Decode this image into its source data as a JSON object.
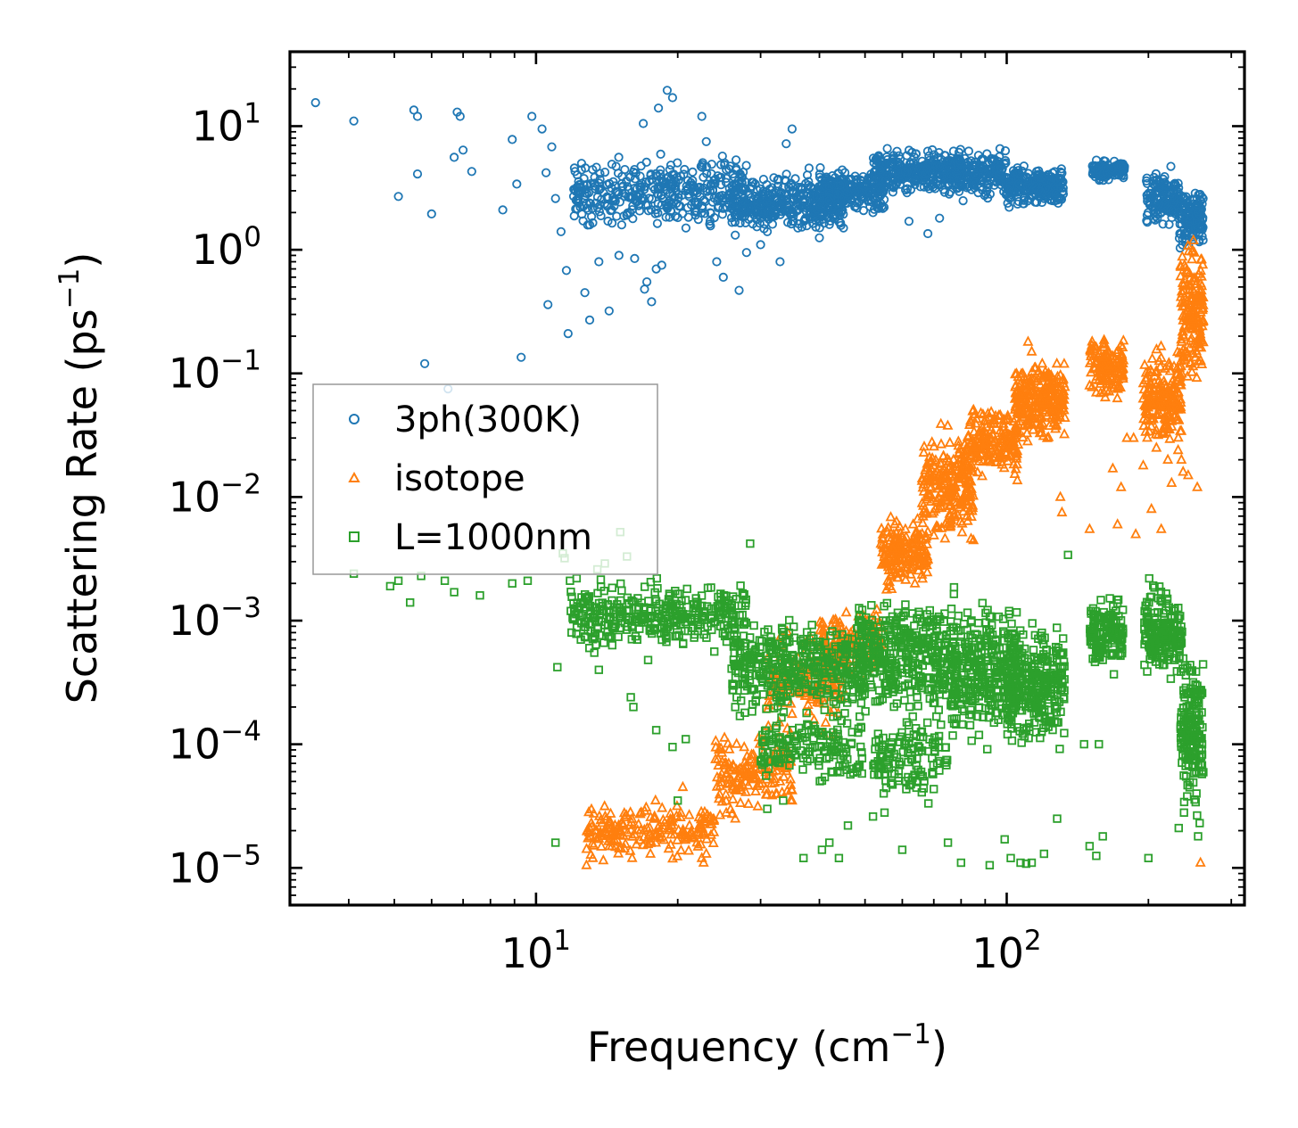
{
  "chart_data": {
    "type": "scatter",
    "xscale": "log",
    "yscale": "log",
    "xlabel": "Frequency (cm",
    "xlabel_sup": "−1",
    "xlabel_end": ")",
    "ylabel": "Scattering Rate (ps",
    "ylabel_sup": "−1",
    "ylabel_end": ")",
    "xlim": [
      3.0,
      320
    ],
    "ylim": [
      5e-06,
      40
    ],
    "ticks_direction": "in",
    "legend_position": "center-left",
    "x_ticks": [
      {
        "value": 10,
        "base": "10",
        "exp": "1"
      },
      {
        "value": 100,
        "base": "10",
        "exp": "2"
      }
    ],
    "y_ticks": [
      {
        "value": 10,
        "base": "10",
        "exp": "1"
      },
      {
        "value": 1,
        "base": "10",
        "exp": "0"
      },
      {
        "value": 0.1,
        "base": "10",
        "exp": "−1"
      },
      {
        "value": 0.01,
        "base": "10",
        "exp": "−2"
      },
      {
        "value": 0.001,
        "base": "10",
        "exp": "−3"
      },
      {
        "value": 0.0001,
        "base": "10",
        "exp": "−4"
      },
      {
        "value": 1e-05,
        "base": "10",
        "exp": "−5"
      }
    ],
    "series": [
      {
        "name": "3ph(300K)",
        "marker": "circle",
        "color": "#1f77b4",
        "points": [
          [
            3.4,
            15.5
          ],
          [
            4.1,
            11
          ],
          [
            5.1,
            2.7
          ],
          [
            5.5,
            13.5
          ],
          [
            5.6,
            12
          ],
          [
            5.6,
            4.1
          ],
          [
            5.8,
            0.12
          ],
          [
            6.0,
            1.95
          ],
          [
            6.5,
            0.075
          ],
          [
            6.8,
            13
          ],
          [
            6.9,
            12
          ],
          [
            6.7,
            5.6
          ],
          [
            7.0,
            6.4
          ],
          [
            7.3,
            4.3
          ],
          [
            8.5,
            2.1
          ],
          [
            8.9,
            7.8
          ],
          [
            9.1,
            3.4
          ],
          [
            9.3,
            0.135
          ],
          [
            9.8,
            12
          ],
          [
            10.3,
            9.5
          ],
          [
            10.5,
            4.2
          ],
          [
            10.6,
            0.36
          ],
          [
            10.8,
            6.8
          ],
          [
            11.0,
            2.6
          ],
          [
            11.3,
            1.4
          ],
          [
            11.6,
            0.68
          ],
          [
            11.7,
            0.21
          ],
          [
            12.1,
            4.3
          ],
          [
            12.7,
            0.45
          ],
          [
            13.0,
            0.27
          ],
          [
            13.2,
            1.65
          ],
          [
            13.6,
            0.8
          ],
          [
            14.3,
            0.32
          ],
          [
            15.0,
            0.9
          ],
          [
            16.2,
            0.85
          ],
          [
            17.0,
            0.48
          ],
          [
            17.2,
            0.55
          ],
          [
            17.6,
            0.38
          ],
          [
            18.0,
            0.7
          ],
          [
            18.5,
            0.75
          ],
          [
            19.0,
            19.5
          ],
          [
            19.5,
            17
          ],
          [
            18.2,
            14
          ],
          [
            16.9,
            10.5
          ],
          [
            22.5,
            12
          ],
          [
            23.0,
            7.5
          ],
          [
            24.2,
            0.8
          ],
          [
            25.0,
            0.6
          ],
          [
            27.0,
            0.47
          ],
          [
            28.0,
            0.95
          ],
          [
            30.0,
            1.1
          ],
          [
            31.0,
            1.4
          ],
          [
            33.0,
            0.8
          ],
          [
            35.0,
            9.5
          ],
          [
            34.0,
            7.2
          ],
          [
            36.0,
            1.5
          ],
          [
            40.0,
            1.25
          ],
          [
            42.0,
            1.6
          ],
          [
            45.0,
            1.5
          ],
          [
            52.0,
            2.0
          ],
          [
            62.0,
            1.7
          ],
          [
            68.0,
            1.35
          ],
          [
            72.0,
            1.8
          ]
        ],
        "dense_regions": [
          {
            "x": [
              12.0,
              28.0
            ],
            "y": [
              1.3,
              6.5
            ],
            "n": 380
          },
          {
            "x": [
              26.0,
              45.0
            ],
            "y": [
              1.2,
              4.8
            ],
            "n": 380
          },
          {
            "x": [
              40.0,
              55.0
            ],
            "y": [
              1.8,
              5.0
            ],
            "n": 230
          },
          {
            "x": [
              52.0,
              80.0
            ],
            "y": [
              2.5,
              7.2
            ],
            "n": 330
          },
          {
            "x": [
              78.0,
              100.0
            ],
            "y": [
              2.4,
              7.0
            ],
            "n": 180
          },
          {
            "x": [
              100.0,
              132.0
            ],
            "y": [
              2.0,
              5.2
            ],
            "n": 240
          },
          {
            "x": [
              152.0,
              178.0
            ],
            "y": [
              3.5,
              5.6
            ],
            "n": 110
          },
          {
            "x": [
              198.0,
              232.0
            ],
            "y": [
              1.4,
              5.0
            ],
            "n": 140
          },
          {
            "x": [
              232.0,
              262.0
            ],
            "y": [
              0.9,
              3.5
            ],
            "n": 140
          }
        ]
      },
      {
        "name": "isotope",
        "marker": "triangle",
        "color": "#ff7f0e",
        "points": [
          [
            12.8,
            1.05e-05
          ],
          [
            13.2,
            1.2e-05
          ],
          [
            13.9,
            1.15e-05
          ],
          [
            14.5,
            1.5e-05
          ],
          [
            16.0,
            1.2e-05
          ],
          [
            17.5,
            1.3e-05
          ],
          [
            19.5,
            2.5e-05
          ],
          [
            20.5,
            4.5e-05
          ],
          [
            22.5,
            1.2e-05
          ],
          [
            22.7,
            1.1e-05
          ],
          [
            23.0,
            1.3e-05
          ],
          [
            26.5,
            2.5e-05
          ],
          [
            27.2,
            4.5e-05
          ],
          [
            33.0,
            5e-05
          ],
          [
            35.0,
            3.5e-05
          ],
          [
            43.0,
            0.00012
          ],
          [
            50.0,
            0.001
          ],
          [
            111.0,
            0.18
          ],
          [
            113.0,
            0.15
          ],
          [
            115.0,
            0.11
          ],
          [
            119.0,
            0.12
          ],
          [
            123.0,
            0.06
          ],
          [
            128.0,
            0.042
          ],
          [
            130.0,
            0.01
          ],
          [
            131.0,
            0.0075
          ],
          [
            150.0,
            0.0055
          ],
          [
            155.0,
            0.07
          ],
          [
            160.0,
            0.09
          ],
          [
            168.0,
            0.017
          ],
          [
            172.0,
            0.006
          ],
          [
            175.0,
            0.012
          ],
          [
            180.0,
            0.03
          ],
          [
            186.0,
            0.03
          ],
          [
            188.0,
            0.005
          ],
          [
            195.0,
            0.018
          ],
          [
            203.0,
            0.008
          ],
          [
            208.0,
            0.025
          ],
          [
            213.0,
            0.0055
          ],
          [
            220.0,
            0.02
          ],
          [
            224.0,
            0.013
          ],
          [
            229.0,
            0.042
          ],
          [
            235.0,
            0.02
          ],
          [
            237.0,
            0.016
          ],
          [
            243.0,
            0.015
          ],
          [
            250.0,
            0.45
          ],
          [
            254.0,
            0.012
          ],
          [
            258.0,
            1.1e-05
          ]
        ],
        "dense_regions": [
          {
            "x": [
              12.8,
              24.0
            ],
            "y": [
              1.1e-05,
              3.8e-05
            ],
            "n": 200
          },
          {
            "x": [
              24.0,
              35.0
            ],
            "y": [
              2.2e-05,
              0.00015
            ],
            "n": 160
          },
          {
            "x": [
              31.0,
              45.0
            ],
            "y": [
              0.0001,
              0.0009
            ],
            "n": 150
          },
          {
            "x": [
              40.0,
              55.0
            ],
            "y": [
              0.0003,
              0.0016
            ],
            "n": 120
          },
          {
            "x": [
              54.0,
              68.0
            ],
            "y": [
              0.0015,
              0.0085
            ],
            "n": 180
          },
          {
            "x": [
              66.0,
              85.0
            ],
            "y": [
              0.0035,
              0.045
            ],
            "n": 230
          },
          {
            "x": [
              82.0,
              106.0
            ],
            "y": [
              0.012,
              0.065
            ],
            "n": 180
          },
          {
            "x": [
              104.0,
              133.0
            ],
            "y": [
              0.025,
              0.14
            ],
            "n": 260
          },
          {
            "x": [
              150.0,
              177.0
            ],
            "y": [
              0.055,
              0.22
            ],
            "n": 130
          },
          {
            "x": [
              195.0,
              236.0
            ],
            "y": [
              0.02,
              0.2
            ],
            "n": 190
          },
          {
            "x": [
              234.0,
              262.0
            ],
            "y": [
              0.06,
              1.6
            ],
            "n": 170
          }
        ]
      },
      {
        "name": "L=1000nm",
        "marker": "square",
        "color": "#2ca02c",
        "points": [
          [
            4.1,
            0.0024
          ],
          [
            4.9,
            0.0019
          ],
          [
            5.1,
            0.0021
          ],
          [
            5.4,
            0.0014
          ],
          [
            5.7,
            0.0023
          ],
          [
            6.4,
            0.0021
          ],
          [
            6.7,
            0.0017
          ],
          [
            7.6,
            0.0016
          ],
          [
            8.9,
            0.002
          ],
          [
            9.6,
            0.0021
          ],
          [
            11.0,
            1.6e-05
          ],
          [
            11.1,
            0.00042
          ],
          [
            11.4,
            0.0035
          ],
          [
            11.5,
            0.0032
          ],
          [
            12.2,
            0.0022
          ],
          [
            13.5,
            0.0026
          ],
          [
            14.0,
            0.0029
          ],
          [
            15.1,
            0.0052
          ],
          [
            15.6,
            0.0033
          ],
          [
            13.3,
            0.00055
          ],
          [
            13.6,
            0.0004
          ],
          [
            15.9,
            0.00024
          ],
          [
            16.1,
            0.0002
          ],
          [
            17.3,
            0.00048
          ],
          [
            18.0,
            0.00013
          ],
          [
            19.5,
            9.5e-05
          ],
          [
            20.0,
            3.5e-05
          ],
          [
            20.8,
            0.00011
          ],
          [
            25.0,
            0.0012
          ],
          [
            26.5,
            0.0002
          ],
          [
            28.5,
            0.0042
          ],
          [
            31.0,
            3e-05
          ],
          [
            33.5,
            3.5e-05
          ],
          [
            37.0,
            1.2e-05
          ],
          [
            40.5,
            1.4e-05
          ],
          [
            42.0,
            1.6e-05
          ],
          [
            44.0,
            1.2e-05
          ],
          [
            46.0,
            2.2e-05
          ],
          [
            52.0,
            2.6e-05
          ],
          [
            55.0,
            2.8e-05
          ],
          [
            60.0,
            1.4e-05
          ],
          [
            75.0,
            1.6e-05
          ],
          [
            80.0,
            1.1e-05
          ],
          [
            92.0,
            1.05e-05
          ],
          [
            99.0,
            1.7e-05
          ],
          [
            102.0,
            1.2e-05
          ],
          [
            107.0,
            1.1e-05
          ],
          [
            110.0,
            1.08e-05
          ],
          [
            113.0,
            1.1e-05
          ],
          [
            120.0,
            1.3e-05
          ],
          [
            128.0,
            2.5e-05
          ],
          [
            135.0,
            0.0034
          ],
          [
            146.0,
            0.0001
          ],
          [
            150.0,
            1.5e-05
          ],
          [
            155.0,
            1.25e-05
          ],
          [
            157.0,
            0.0001
          ],
          [
            160.0,
            1.8e-05
          ],
          [
            200.0,
            1.2e-05
          ],
          [
            232.0,
            2.1e-05
          ],
          [
            238.0,
            2.8e-05
          ],
          [
            255.0,
            1.8e-05
          ],
          [
            257.0,
            2.3e-05
          ]
        ],
        "dense_regions": [
          {
            "x": [
              11.8,
              28.0
            ],
            "y": [
              0.0005,
              0.0024
            ],
            "n": 360
          },
          {
            "x": [
              26.0,
              50.0
            ],
            "y": [
              0.00015,
              0.0012
            ],
            "n": 380
          },
          {
            "x": [
              30.0,
              50.0
            ],
            "y": [
              4e-05,
              0.00022
            ],
            "n": 160
          },
          {
            "x": [
              48.0,
              78.0
            ],
            "y": [
              0.00012,
              0.0022
            ],
            "n": 420
          },
          {
            "x": [
              52.0,
              75.0
            ],
            "y": [
              3e-05,
              0.0002
            ],
            "n": 130
          },
          {
            "x": [
              76.0,
              105.0
            ],
            "y": [
              8e-05,
              0.0016
            ],
            "n": 320
          },
          {
            "x": [
              100.0,
              133.0
            ],
            "y": [
              7e-05,
              0.0012
            ],
            "n": 300
          },
          {
            "x": [
              150.0,
              177.0
            ],
            "y": [
              0.00035,
              0.0018
            ],
            "n": 140
          },
          {
            "x": [
              196.0,
              236.0
            ],
            "y": [
              0.00025,
              0.0023
            ],
            "n": 190
          },
          {
            "x": [
              234.0,
              262.0
            ],
            "y": [
              2e-05,
              0.0009
            ],
            "n": 170
          }
        ]
      }
    ]
  }
}
